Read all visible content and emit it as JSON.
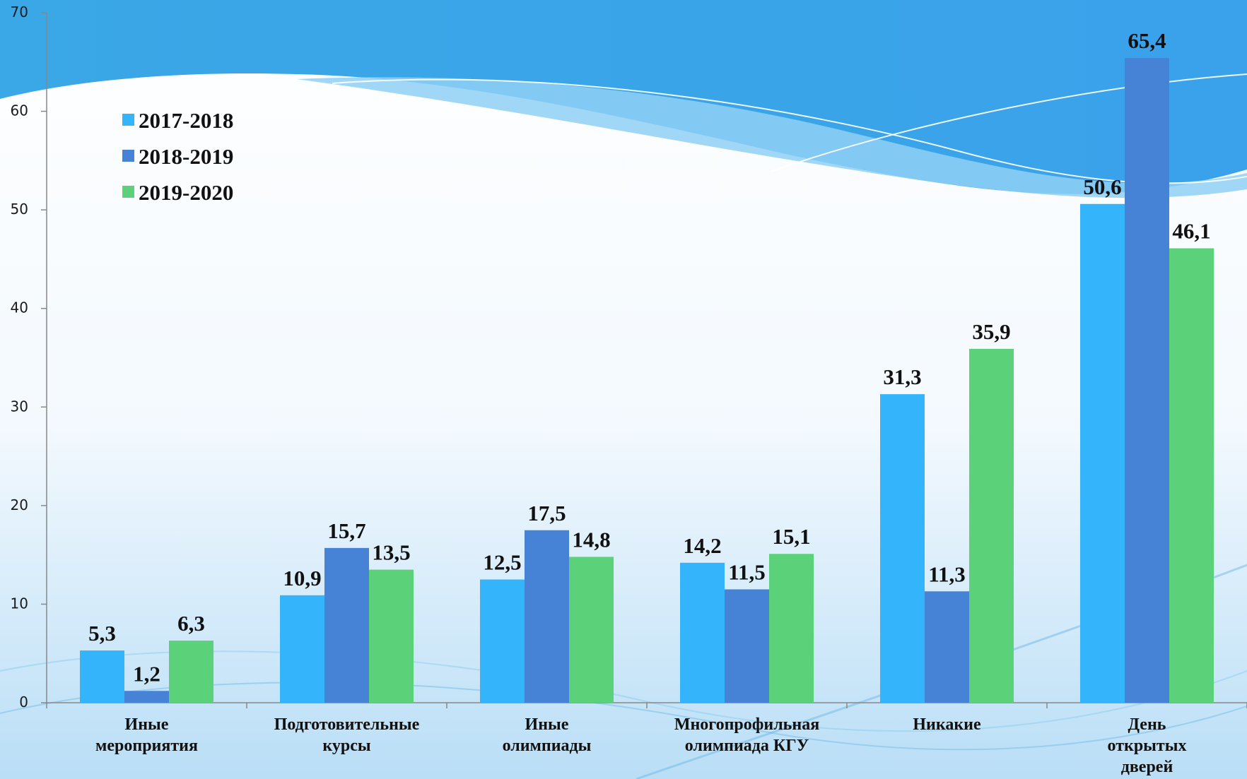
{
  "chart_data": {
    "type": "bar",
    "categories": [
      [
        "Иные",
        "мероприятия"
      ],
      [
        "Подготовительные",
        "курсы"
      ],
      [
        "Иные",
        "олимпиады"
      ],
      [
        "Многопрофильная",
        "олимпиада КГУ"
      ],
      [
        "Никакие"
      ],
      [
        "День",
        "открытых",
        "дверей"
      ]
    ],
    "series": [
      {
        "name": "2017-2018",
        "color": "#33b4fb",
        "values": [
          5.3,
          10.9,
          12.5,
          14.2,
          31.3,
          50.6
        ],
        "labels": [
          "5,3",
          "10,9",
          "12,5",
          "14,2",
          "31,3",
          "50,6"
        ]
      },
      {
        "name": "2018-2019",
        "color": "#4683d6",
        "values": [
          1.2,
          15.7,
          17.5,
          11.5,
          11.3,
          65.4
        ],
        "labels": [
          "1,2",
          "15,7",
          "17,5",
          "11,5",
          "11,3",
          "65,4"
        ]
      },
      {
        "name": "2019-2020",
        "color": "#5bd179",
        "values": [
          6.3,
          13.5,
          14.8,
          15.1,
          35.9,
          46.1
        ],
        "labels": [
          "6,3",
          "13,5",
          "14,8",
          "15,1",
          "35,9",
          "46,1"
        ]
      }
    ],
    "yticks": [
      "0",
      "10",
      "20",
      "30",
      "40",
      "50",
      "60",
      "70"
    ],
    "ylim": [
      0,
      70
    ],
    "title": "",
    "xlabel": "",
    "ylabel": "",
    "grid": false,
    "legend": "top-left"
  }
}
